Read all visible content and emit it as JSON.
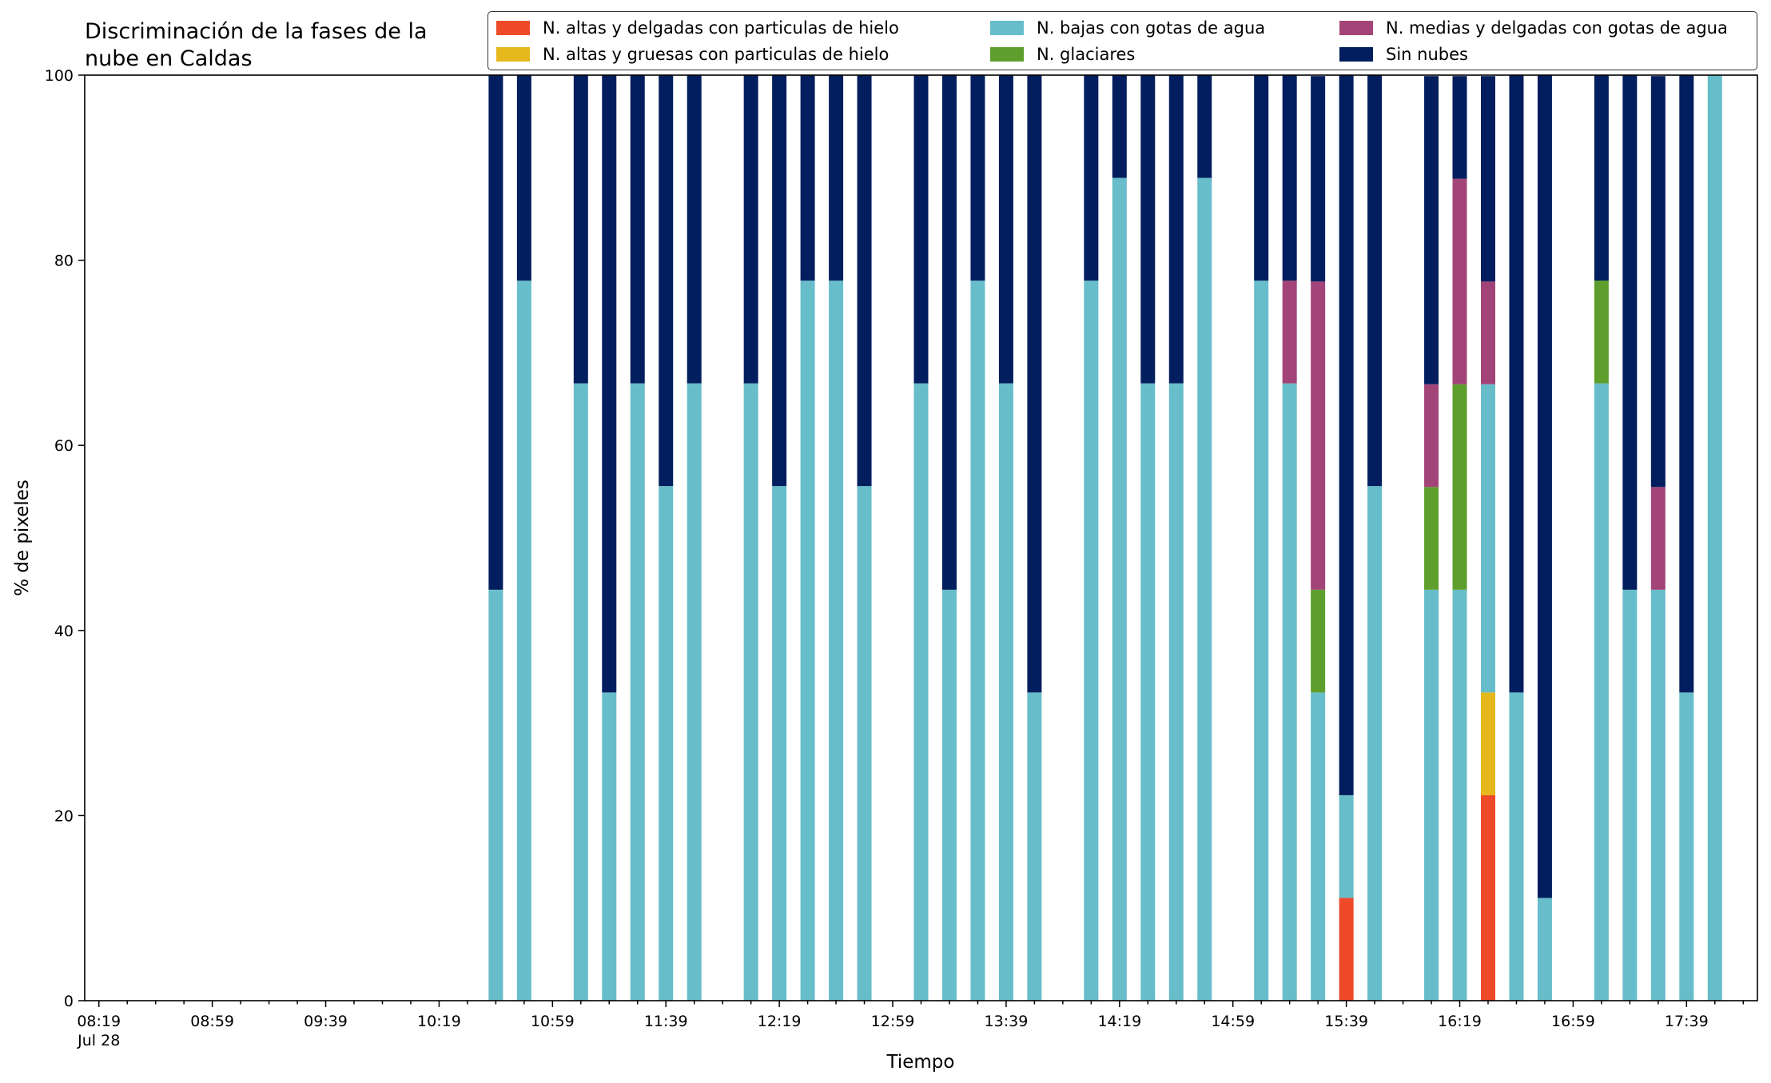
{
  "chart_data": {
    "type": "bar",
    "stacked": true,
    "title": "Discriminación de la fases de la nube en Caldas",
    "title_lines": [
      "Discriminación de la fases de la",
      "nube en Caldas"
    ],
    "xlabel": "Tiempo",
    "ylabel": "% de pixeles",
    "ylim": [
      0,
      100
    ],
    "yticks": [
      0,
      20,
      40,
      60,
      80,
      100
    ],
    "grid": false,
    "legend_position": "top",
    "x_date_label": "Jul 28",
    "x_major_ticks": [
      "08:19",
      "08:59",
      "09:39",
      "10:19",
      "10:59",
      "11:39",
      "12:19",
      "12:59",
      "13:39",
      "14:19",
      "14:59",
      "15:39",
      "16:19",
      "16:59",
      "17:39"
    ],
    "x_range": [
      "08:14",
      "18:04"
    ],
    "categories": [
      "10:39",
      "10:49",
      "11:09",
      "11:19",
      "11:29",
      "11:39",
      "11:49",
      "12:09",
      "12:19",
      "12:29",
      "12:39",
      "12:49",
      "13:09",
      "13:19",
      "13:29",
      "13:39",
      "13:49",
      "14:09",
      "14:19",
      "14:29",
      "14:39",
      "14:49",
      "15:09",
      "15:19",
      "15:29",
      "15:39",
      "15:49",
      "16:09",
      "16:19",
      "16:29",
      "16:39",
      "16:49",
      "17:09",
      "17:19",
      "17:29",
      "17:39",
      "17:49"
    ],
    "series": [
      {
        "name": "N. altas y delgadas con particulas de hielo",
        "color": "#EE4A2A",
        "values": [
          0,
          0,
          0,
          0,
          0,
          0,
          0,
          0,
          0,
          0,
          0,
          0,
          0,
          0,
          0,
          0,
          0,
          0,
          0,
          0,
          0,
          0,
          0,
          0,
          0,
          11.1,
          0,
          0,
          0,
          22.2,
          0,
          0,
          0,
          0,
          0,
          0,
          0
        ]
      },
      {
        "name": "N. altas y gruesas con particulas de hielo",
        "color": "#E5B81C",
        "values": [
          0,
          0,
          0,
          0,
          0,
          0,
          0,
          0,
          0,
          0,
          0,
          0,
          0,
          0,
          0,
          0,
          0,
          0,
          0,
          0,
          0,
          0,
          0,
          0,
          0,
          0,
          0,
          0,
          0,
          11.1,
          0,
          0,
          0,
          0,
          0,
          0,
          0
        ]
      },
      {
        "name": "N. bajas con gotas de agua",
        "color": "#67BDC9",
        "values": [
          44.4,
          77.8,
          66.7,
          33.3,
          66.7,
          55.6,
          66.7,
          66.7,
          55.6,
          77.8,
          77.8,
          55.6,
          66.7,
          44.4,
          77.8,
          66.7,
          33.3,
          77.8,
          88.9,
          66.7,
          66.7,
          88.9,
          77.8,
          66.7,
          33.3,
          11.1,
          55.6,
          44.4,
          44.4,
          33.3,
          33.3,
          11.1,
          66.7,
          44.4,
          44.4,
          33.3,
          100
        ]
      },
      {
        "name": "N. glaciares",
        "color": "#5E9E2C",
        "values": [
          0,
          0,
          0,
          0,
          0,
          0,
          0,
          0,
          0,
          0,
          0,
          0,
          0,
          0,
          0,
          0,
          0,
          0,
          0,
          0,
          0,
          0,
          0,
          0,
          11.1,
          0,
          0,
          11.1,
          22.2,
          0,
          0,
          0,
          11.1,
          0,
          0,
          0,
          0
        ]
      },
      {
        "name": "N. medias y delgadas con gotas de agua",
        "color": "#A34479",
        "values": [
          0,
          0,
          0,
          0,
          0,
          0,
          0,
          0,
          0,
          0,
          0,
          0,
          0,
          0,
          0,
          0,
          0,
          0,
          0,
          0,
          0,
          0,
          0,
          11.1,
          33.3,
          0,
          0,
          11.1,
          22.2,
          11.1,
          0,
          0,
          0,
          0,
          11.1,
          0,
          0
        ]
      },
      {
        "name": "Sin nubes",
        "color": "#021E5E",
        "values": [
          55.6,
          22.2,
          33.3,
          66.7,
          33.3,
          44.4,
          33.3,
          33.3,
          44.4,
          22.2,
          22.2,
          44.4,
          33.3,
          55.6,
          22.2,
          33.3,
          66.7,
          22.2,
          11.1,
          33.3,
          33.3,
          11.1,
          22.2,
          22.2,
          22.2,
          77.8,
          44.4,
          33.3,
          11.1,
          22.2,
          66.7,
          88.9,
          22.2,
          55.6,
          44.4,
          66.7,
          0
        ]
      }
    ]
  }
}
